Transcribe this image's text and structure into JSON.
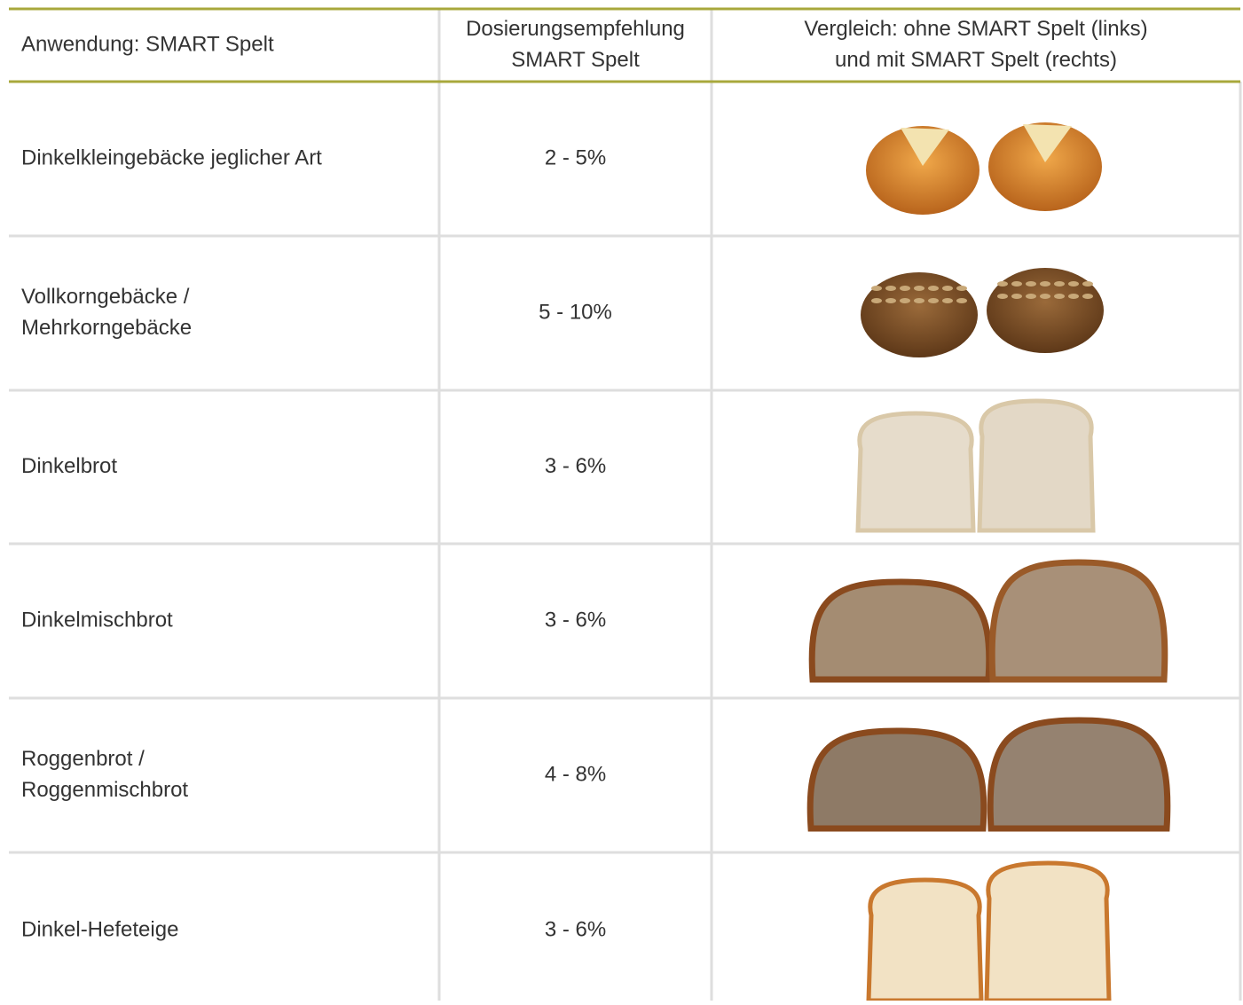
{
  "header": {
    "columns": [
      [
        "Anwendung: SMART Spelt"
      ],
      [
        "Dosierungsempfehlung",
        "SMART Spelt"
      ],
      [
        "Vergleich: ohne SMART Spelt (links)",
        "und mit SMART Spelt (rechts)"
      ]
    ]
  },
  "table": {
    "rows": [
      {
        "label": [
          "Dinkelkleingebäcke jeglicher Art"
        ],
        "dosage": "2 - 5%"
      },
      {
        "label": [
          "Vollkorngebäcke /",
          "Mehrkorngebäcke"
        ],
        "dosage": "5 - 10%"
      },
      {
        "label": [
          "Dinkelbrot"
        ],
        "dosage": "3 - 6%"
      },
      {
        "label": [
          "Dinkelmischbrot"
        ],
        "dosage": "3 - 6%"
      },
      {
        "label": [
          "Roggenbrot /",
          "Roggenmischbrot"
        ],
        "dosage": "4 - 8%"
      },
      {
        "label": [
          "Dinkel-Hefeteige"
        ],
        "dosage": "3 - 6%"
      }
    ]
  }
}
